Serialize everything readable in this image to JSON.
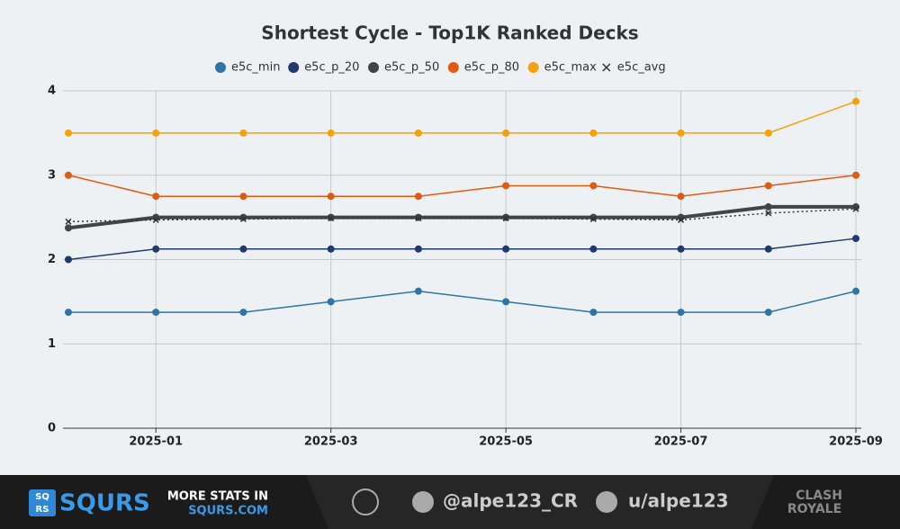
{
  "chart_data": {
    "type": "line",
    "title": "Shortest Cycle - Top1K Ranked Decks",
    "legend": "top",
    "grid": true,
    "x": [
      "2024-12",
      "2025-01",
      "2025-02",
      "2025-03",
      "2025-04",
      "2025-05",
      "2025-06",
      "2025-07",
      "2025-08",
      "2025-09"
    ],
    "xticks": [
      "2025-01",
      "2025-03",
      "2025-05",
      "2025-07",
      "2025-09"
    ],
    "ylim": [
      0,
      4
    ],
    "yticks": [
      0,
      1,
      2,
      3,
      4
    ],
    "series": [
      {
        "name": "e5c_min",
        "color": "#2e75a6",
        "marker": "circle",
        "line_width": 1.5,
        "values": [
          1.375,
          1.375,
          1.375,
          1.5,
          1.625,
          1.5,
          1.375,
          1.375,
          1.375,
          1.625
        ]
      },
      {
        "name": "e5c_p_20",
        "color": "#1f3a70",
        "marker": "circle",
        "line_width": 1.5,
        "values": [
          2,
          2.125,
          2.125,
          2.125,
          2.125,
          2.125,
          2.125,
          2.125,
          2.125,
          2.25
        ]
      },
      {
        "name": "e5c_p_50",
        "color": "#444444",
        "marker": "circle",
        "line_width": 4,
        "values": [
          2.375,
          2.5,
          2.5,
          2.5,
          2.5,
          2.5,
          2.5,
          2.5,
          2.625,
          2.625
        ]
      },
      {
        "name": "e5c_p_80",
        "color": "#e05a10",
        "marker": "circle",
        "line_width": 1.5,
        "values": [
          3,
          2.75,
          2.75,
          2.75,
          2.75,
          2.875,
          2.875,
          2.75,
          2.875,
          3
        ]
      },
      {
        "name": "e5c_max",
        "color": "#f5a20a",
        "marker": "circle",
        "line_width": 1.5,
        "values": [
          3.5,
          3.5,
          3.5,
          3.5,
          3.5,
          3.5,
          3.5,
          3.5,
          3.5,
          3.875
        ]
      },
      {
        "name": "e5c_avg",
        "color": "#333333",
        "marker": "x",
        "dash": "dotted",
        "line_width": 1.5,
        "values": [
          2.45,
          2.47,
          2.48,
          2.49,
          2.49,
          2.49,
          2.48,
          2.47,
          2.55,
          2.6
        ]
      }
    ]
  },
  "footer": {
    "logo_icon": [
      "SQ",
      "RS"
    ],
    "logo": "SQURS",
    "promo": "MORE STATS IN",
    "site": "SQURS.COM",
    "twitter": "@alpe123_CR",
    "reddit": "u/alpe123",
    "game_logo": [
      "CLASH",
      "ROYALE"
    ]
  }
}
